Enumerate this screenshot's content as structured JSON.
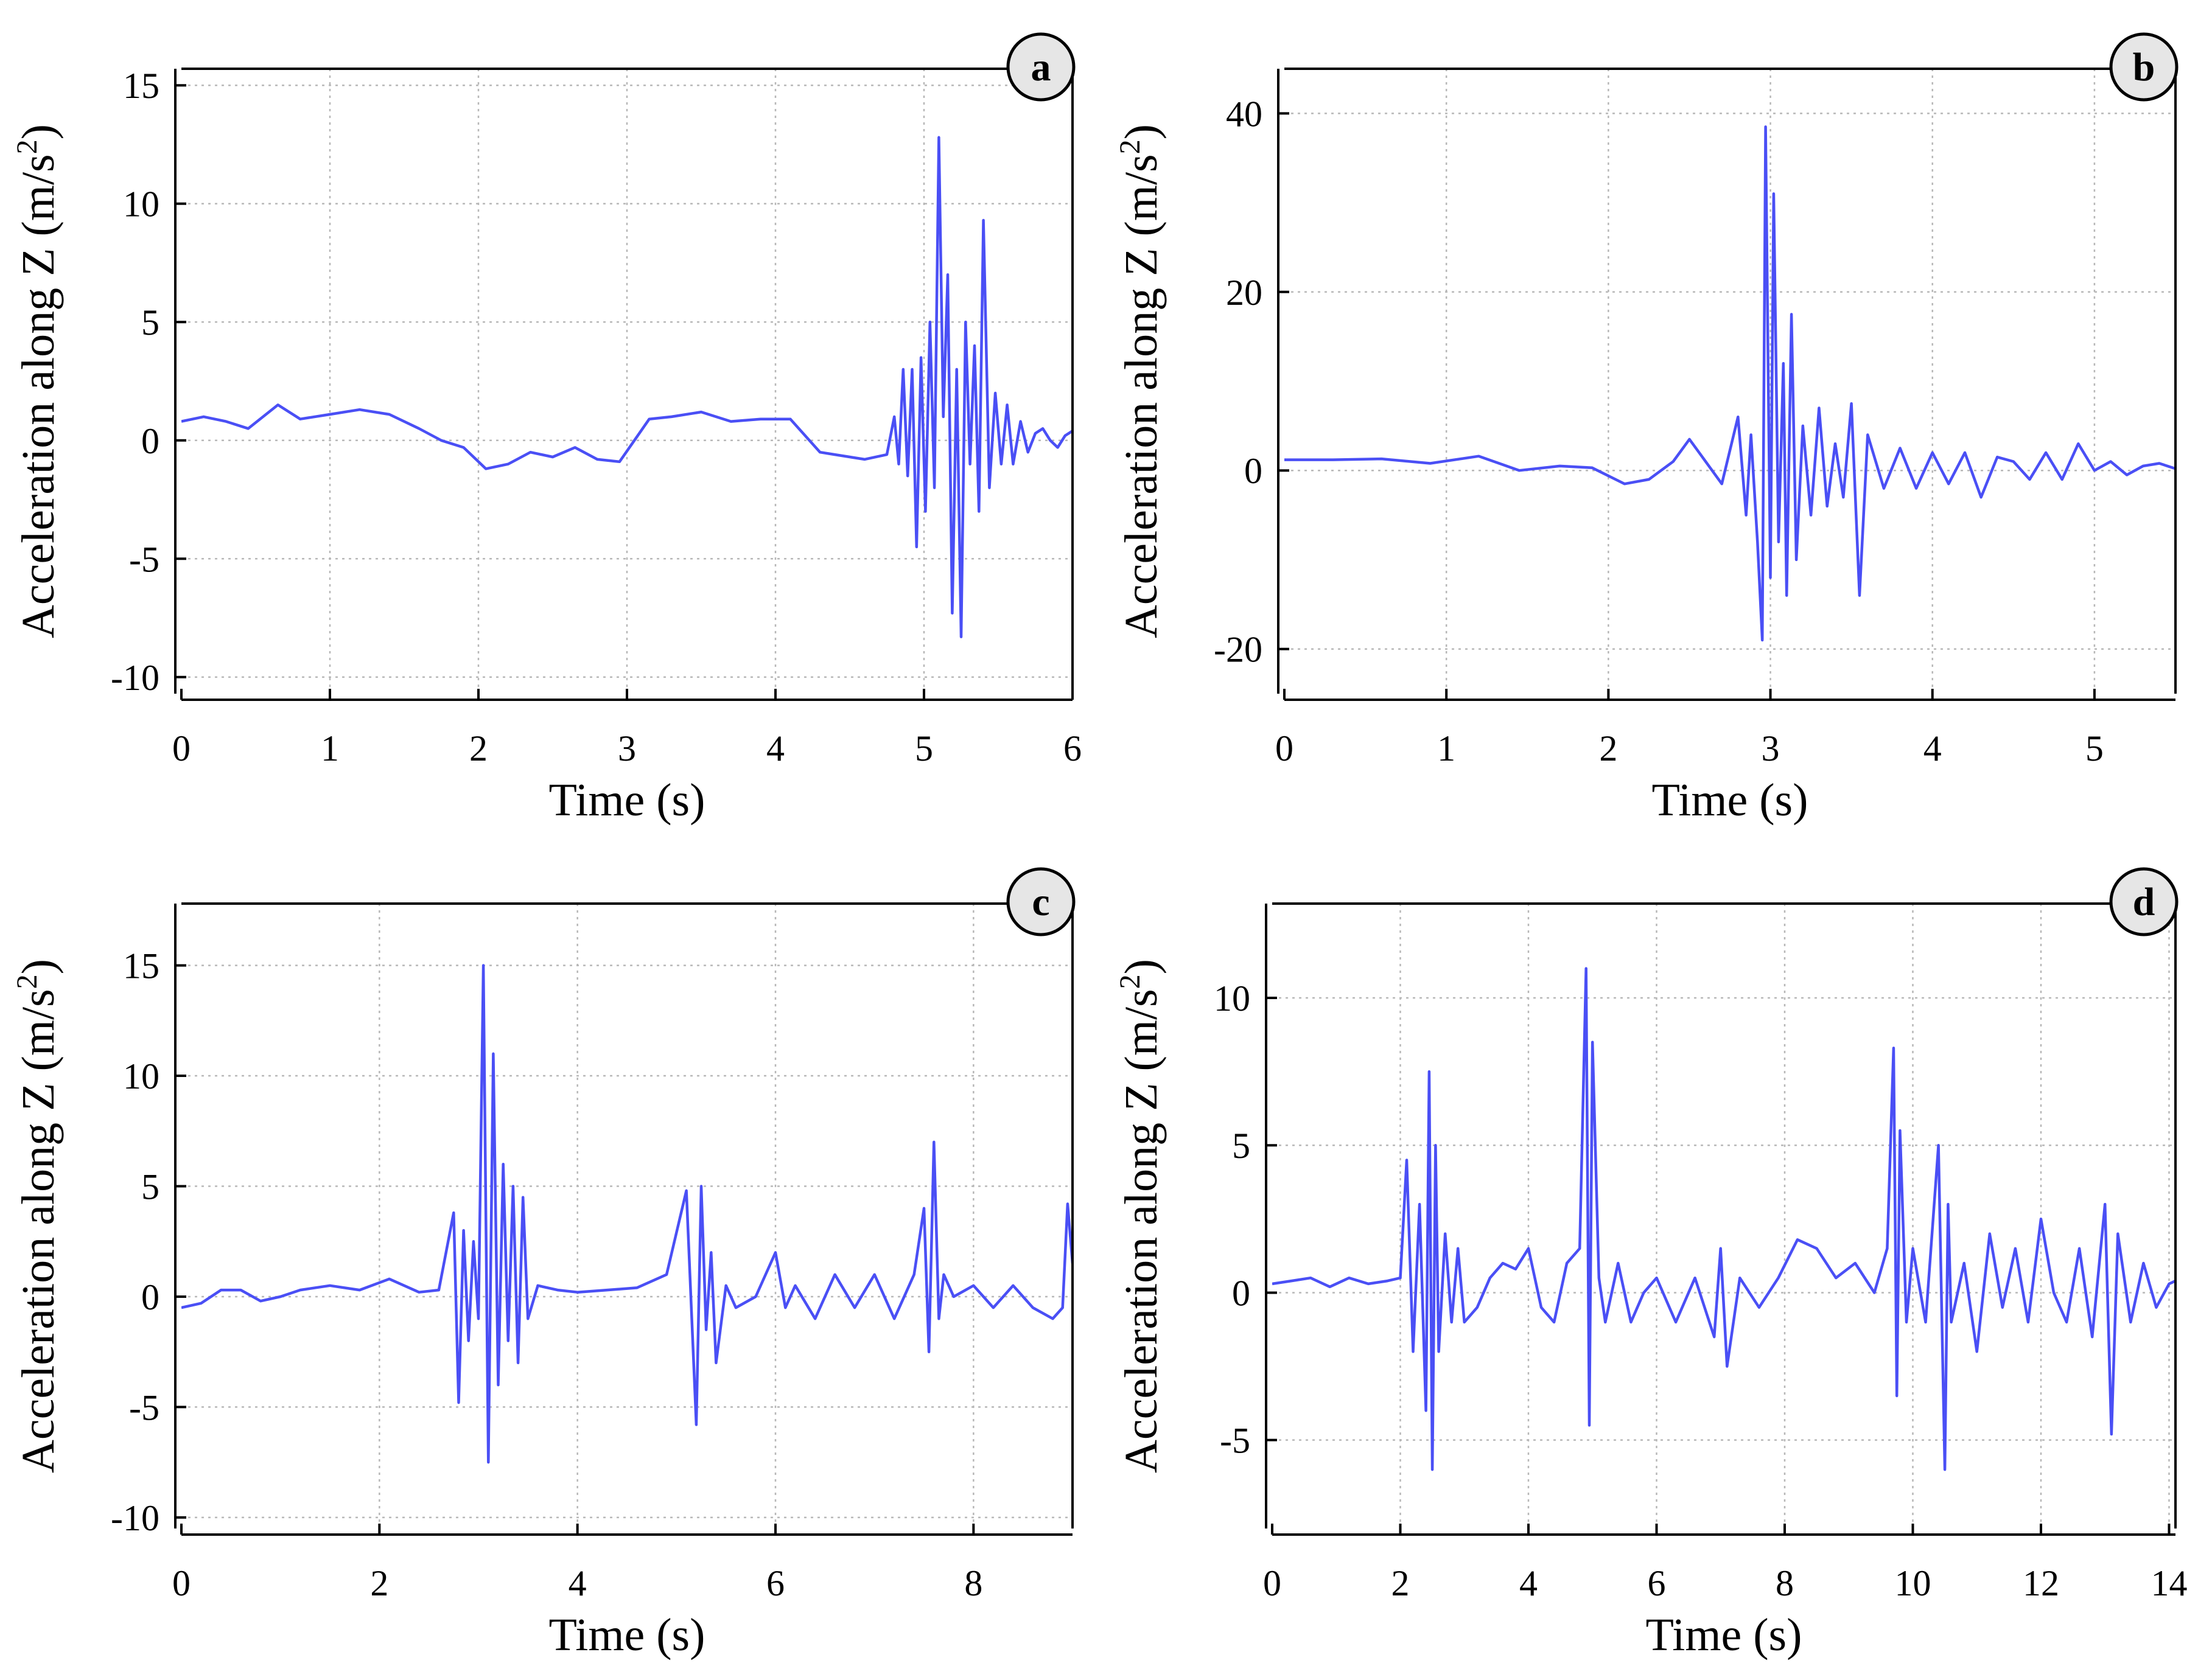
{
  "colors": {
    "line": "#4a4ff5",
    "grid": "#b8b8b8",
    "axis": "#000000",
    "badge_fill": "#e6e6e6"
  },
  "chart_data": [
    {
      "id": "a",
      "type": "line",
      "badge": "a",
      "xlabel": "Time (s)",
      "ylabel_prefix": "Acceleration along Z (m/s",
      "ylabel_sup": "2",
      "ylabel_suffix": ")",
      "xlim": [
        0,
        6
      ],
      "ylim": [
        -10.7,
        15.7
      ],
      "xticks": [
        0,
        1,
        2,
        3,
        4,
        5,
        6
      ],
      "yticks": [
        -10,
        -5,
        0,
        5,
        10,
        15
      ],
      "series": [
        {
          "name": "acceleration",
          "x": [
            0,
            0.15,
            0.3,
            0.45,
            0.65,
            0.8,
            1.0,
            1.2,
            1.4,
            1.6,
            1.75,
            1.9,
            2.05,
            2.2,
            2.35,
            2.5,
            2.65,
            2.8,
            2.95,
            3.05,
            3.15,
            3.3,
            3.5,
            3.7,
            3.9,
            4.1,
            4.3,
            4.4,
            4.6,
            4.75,
            4.8,
            4.83,
            4.86,
            4.89,
            4.92,
            4.95,
            4.98,
            5.01,
            5.04,
            5.07,
            5.1,
            5.13,
            5.16,
            5.19,
            5.22,
            5.25,
            5.28,
            5.31,
            5.34,
            5.37,
            5.4,
            5.44,
            5.48,
            5.52,
            5.56,
            5.6,
            5.65,
            5.7,
            5.75,
            5.8,
            5.85,
            5.9,
            5.95,
            6.0
          ],
          "values": [
            0.8,
            1.0,
            0.8,
            0.5,
            1.5,
            0.9,
            1.1,
            1.3,
            1.1,
            0.5,
            0.0,
            -0.3,
            -1.2,
            -1.0,
            -0.5,
            -0.7,
            -0.3,
            -0.8,
            -0.9,
            0.0,
            0.9,
            1.0,
            1.2,
            0.8,
            0.9,
            0.9,
            -0.5,
            -0.6,
            -0.8,
            -0.6,
            1.0,
            -1.0,
            3.0,
            -1.5,
            3.0,
            -4.5,
            3.5,
            -3.0,
            5.0,
            -2.0,
            12.8,
            1.0,
            7.0,
            -7.3,
            3.0,
            -8.3,
            5.0,
            -1.0,
            4.0,
            -3.0,
            9.3,
            -2.0,
            2.0,
            -1.0,
            1.5,
            -1.0,
            0.8,
            -0.5,
            0.3,
            0.5,
            0.0,
            -0.3,
            0.2,
            0.4
          ]
        }
      ]
    },
    {
      "id": "b",
      "type": "line",
      "badge": "b",
      "xlabel": "Time (s)",
      "ylabel_prefix": "Acceleration along Z (m/s",
      "ylabel_sup": "2",
      "ylabel_suffix": ")",
      "xlim": [
        0,
        5.5
      ],
      "ylim": [
        -25,
        45
      ],
      "xticks": [
        0,
        1,
        2,
        3,
        4,
        5
      ],
      "yticks": [
        -20,
        0,
        20,
        40
      ],
      "series": [
        {
          "name": "acceleration",
          "x": [
            0,
            0.3,
            0.6,
            0.9,
            1.2,
            1.45,
            1.7,
            1.9,
            2.1,
            2.25,
            2.4,
            2.5,
            2.6,
            2.7,
            2.8,
            2.85,
            2.88,
            2.92,
            2.95,
            2.97,
            3.0,
            3.02,
            3.05,
            3.08,
            3.1,
            3.13,
            3.16,
            3.2,
            3.25,
            3.3,
            3.35,
            3.4,
            3.45,
            3.5,
            3.55,
            3.6,
            3.7,
            3.8,
            3.9,
            4.0,
            4.1,
            4.2,
            4.3,
            4.4,
            4.5,
            4.6,
            4.7,
            4.8,
            4.9,
            5.0,
            5.1,
            5.2,
            5.3,
            5.4,
            5.5
          ],
          "values": [
            1.2,
            1.2,
            1.3,
            0.8,
            1.6,
            0.0,
            0.5,
            0.3,
            -1.5,
            -1.0,
            1.0,
            3.5,
            1.0,
            -1.5,
            6.0,
            -5.0,
            4.0,
            -8.0,
            -19.0,
            38.5,
            -12.0,
            31.0,
            -8.0,
            12.0,
            -14.0,
            17.5,
            -10.0,
            5.0,
            -5.0,
            7.0,
            -4.0,
            3.0,
            -3.0,
            7.5,
            -14.0,
            4.0,
            -2.0,
            2.5,
            -2.0,
            2.0,
            -1.5,
            2.0,
            -3.0,
            1.5,
            1.0,
            -1.0,
            2.0,
            -1.0,
            3.0,
            0.0,
            1.0,
            -0.5,
            0.5,
            0.8,
            0.2
          ]
        }
      ]
    },
    {
      "id": "c",
      "type": "line",
      "badge": "c",
      "xlabel": "Time (s)",
      "ylabel_prefix": "Acceleration along Z (m/s",
      "ylabel_sup": "2",
      "ylabel_suffix": ")",
      "xlim": [
        0,
        9
      ],
      "ylim": [
        -10.5,
        17.8
      ],
      "xticks": [
        0,
        2,
        4,
        6,
        8
      ],
      "yticks": [
        -10,
        -5,
        0,
        5,
        10,
        15
      ],
      "series": [
        {
          "name": "acceleration",
          "x": [
            0,
            0.2,
            0.4,
            0.6,
            0.8,
            1.0,
            1.2,
            1.5,
            1.8,
            2.1,
            2.4,
            2.6,
            2.75,
            2.8,
            2.85,
            2.9,
            2.95,
            3.0,
            3.05,
            3.1,
            3.15,
            3.2,
            3.25,
            3.3,
            3.35,
            3.4,
            3.45,
            3.5,
            3.6,
            3.8,
            4.0,
            4.3,
            4.6,
            4.9,
            5.1,
            5.2,
            5.25,
            5.3,
            5.35,
            5.4,
            5.5,
            5.6,
            5.8,
            6.0,
            6.1,
            6.2,
            6.4,
            6.6,
            6.8,
            7.0,
            7.2,
            7.4,
            7.5,
            7.55,
            7.6,
            7.65,
            7.7,
            7.8,
            8.0,
            8.2,
            8.4,
            8.6,
            8.8,
            8.9,
            8.95,
            9.0
          ],
          "values": [
            -0.5,
            -0.3,
            0.3,
            0.3,
            -0.2,
            0.0,
            0.3,
            0.5,
            0.3,
            0.8,
            0.2,
            0.3,
            3.8,
            -4.8,
            3.0,
            -2.0,
            2.5,
            -1.0,
            15.0,
            -7.5,
            11.0,
            -4.0,
            6.0,
            -2.0,
            5.0,
            -3.0,
            4.5,
            -1.0,
            0.5,
            0.3,
            0.2,
            0.3,
            0.4,
            1.0,
            4.8,
            -5.8,
            5.0,
            -1.5,
            2.0,
            -3.0,
            0.5,
            -0.5,
            0.0,
            2.0,
            -0.5,
            0.5,
            -1.0,
            1.0,
            -0.5,
            1.0,
            -1.0,
            1.0,
            4.0,
            -2.5,
            7.0,
            -1.0,
            1.0,
            0.0,
            0.5,
            -0.5,
            0.5,
            -0.5,
            -1.0,
            -0.5,
            4.2,
            1.5
          ]
        }
      ]
    },
    {
      "id": "d",
      "type": "line",
      "badge": "d",
      "xlabel": "Time (s)",
      "ylabel_prefix": "Acceleration along Z (m/s",
      "ylabel_sup": "2",
      "ylabel_suffix": ")",
      "xlim": [
        0,
        14.1
      ],
      "ylim": [
        -8,
        13.2
      ],
      "xticks": [
        0,
        2,
        4,
        6,
        8,
        10,
        12,
        14
      ],
      "yticks": [
        -5,
        0,
        5,
        10
      ],
      "series": [
        {
          "name": "acceleration",
          "x": [
            0,
            0.3,
            0.6,
            0.9,
            1.2,
            1.5,
            1.8,
            2.0,
            2.1,
            2.2,
            2.3,
            2.4,
            2.45,
            2.5,
            2.55,
            2.6,
            2.7,
            2.8,
            2.9,
            3.0,
            3.2,
            3.4,
            3.6,
            3.8,
            4.0,
            4.2,
            4.4,
            4.6,
            4.8,
            4.9,
            4.95,
            5.0,
            5.1,
            5.2,
            5.4,
            5.6,
            5.8,
            6.0,
            6.3,
            6.6,
            6.9,
            7.0,
            7.1,
            7.3,
            7.6,
            7.9,
            8.2,
            8.5,
            8.8,
            9.1,
            9.4,
            9.6,
            9.7,
            9.75,
            9.8,
            9.9,
            10.0,
            10.2,
            10.4,
            10.5,
            10.55,
            10.6,
            10.8,
            11.0,
            11.2,
            11.4,
            11.6,
            11.8,
            12.0,
            12.2,
            12.4,
            12.6,
            12.8,
            13.0,
            13.1,
            13.2,
            13.4,
            13.6,
            13.8,
            14.0,
            14.1
          ],
          "values": [
            0.3,
            0.4,
            0.5,
            0.2,
            0.5,
            0.3,
            0.4,
            0.5,
            4.5,
            -2.0,
            3.0,
            -4.0,
            7.5,
            -6.0,
            5.0,
            -2.0,
            2.0,
            -1.0,
            1.5,
            -1.0,
            -0.5,
            0.5,
            1.0,
            0.8,
            1.5,
            -0.5,
            -1.0,
            1.0,
            1.5,
            11.0,
            -4.5,
            8.5,
            0.5,
            -1.0,
            1.0,
            -1.0,
            0.0,
            0.5,
            -1.0,
            0.5,
            -1.5,
            1.5,
            -2.5,
            0.5,
            -0.5,
            0.5,
            1.8,
            1.5,
            0.5,
            1.0,
            0.0,
            1.5,
            8.3,
            -3.5,
            5.5,
            -1.0,
            1.5,
            -1.0,
            5.0,
            -6.0,
            3.0,
            -1.0,
            1.0,
            -2.0,
            2.0,
            -0.5,
            1.5,
            -1.0,
            2.5,
            0.0,
            -1.0,
            1.5,
            -1.5,
            3.0,
            -4.8,
            2.0,
            -1.0,
            1.0,
            -0.5,
            0.3,
            0.4
          ]
        }
      ]
    }
  ]
}
